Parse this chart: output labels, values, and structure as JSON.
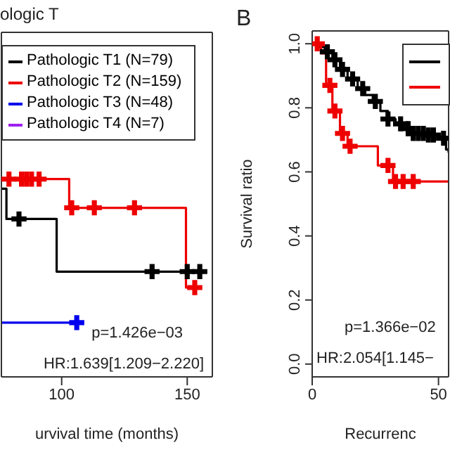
{
  "chart_data": [
    {
      "type": "step",
      "title": "ologic T",
      "xlabel": "urvival time (months)",
      "xlim": [
        76,
        160
      ],
      "xticks": [
        100,
        150
      ],
      "ylim": [
        -0.04,
        1.04
      ],
      "tick_labels": "x",
      "legend": "top",
      "annotations": [
        "p=1.426e−03",
        "HR:1.639[1.209−2.220]"
      ],
      "series": [
        {
          "name": "Pathologic T1 (N=79)",
          "color": "#000000",
          "x": [
            76,
            78,
            98,
            155
          ],
          "values": [
            0.55,
            0.455,
            0.29,
            0.29
          ]
        },
        {
          "name": "Pathologic T2 (N=159)",
          "color": "#ee0000",
          "x": [
            76,
            103,
            149.5,
            153
          ],
          "values": [
            0.58,
            0.49,
            0.24,
            0.24
          ]
        },
        {
          "name": "Pathologic T3 (N=48)",
          "color": "#0000ee",
          "x": [
            76,
            106
          ],
          "values": [
            0.13,
            0.13
          ]
        },
        {
          "name": "Pathologic T4 (N=7)",
          "color": "#a020f0"
        },
        {
          "type": "scatter",
          "marker": "cross",
          "color": "#000000",
          "x": [
            83,
            136,
            150,
            155
          ],
          "values": [
            0.455,
            0.29,
            0.29,
            0.29
          ]
        },
        {
          "type": "scatter",
          "marker": "cross",
          "color": "#ee0000",
          "x": [
            79,
            84,
            86,
            88,
            91,
            104,
            113,
            129,
            153
          ],
          "values": [
            0.58,
            0.58,
            0.58,
            0.58,
            0.58,
            0.49,
            0.49,
            0.49,
            0.24
          ]
        },
        {
          "type": "scatter",
          "marker": "cross",
          "color": "#0000ee",
          "x": [
            106
          ],
          "values": [
            0.13
          ]
        }
      ]
    },
    {
      "type": "step",
      "title": "B",
      "xlabel": "Recurrenc",
      "ylabel": "Survival ratio",
      "xlim": [
        0,
        54
      ],
      "xticks": [
        0,
        50
      ],
      "ylim": [
        -0.04,
        1.04
      ],
      "yticks": [
        {
          "value": 0,
          "label": "0.0"
        },
        0.2,
        0.4,
        0.6,
        0.8,
        {
          "value": 1,
          "label": "1.0"
        }
      ],
      "legend": "top right",
      "annotations": [
        "p=1.366e−02",
        "HR:2.054[1.145−"
      ],
      "series": [
        {
          "color": "#000000",
          "x": [
            0,
            2,
            5,
            8,
            11,
            14,
            18,
            21,
            24,
            27,
            30,
            33,
            36,
            39,
            45,
            50,
            53,
            54
          ],
          "values": [
            1,
            0.99,
            0.975,
            0.95,
            0.92,
            0.89,
            0.86,
            0.84,
            0.82,
            0.79,
            0.765,
            0.75,
            0.735,
            0.72,
            0.715,
            0.705,
            0.67,
            0.66
          ]
        },
        {
          "color": "#ee0000",
          "x": [
            0,
            3.5,
            5.5,
            8,
            11,
            14,
            26,
            32,
            54
          ],
          "values": [
            1,
            0.97,
            0.87,
            0.79,
            0.72,
            0.68,
            0.62,
            0.57,
            0.57
          ]
        },
        {
          "type": "scatter",
          "marker": "cross",
          "color": "#000000",
          "x": [
            6,
            9,
            12,
            16,
            20,
            25,
            30,
            35,
            38,
            40,
            42,
            44,
            46,
            48,
            52
          ],
          "values": [
            0.975,
            0.95,
            0.92,
            0.89,
            0.86,
            0.82,
            0.765,
            0.75,
            0.735,
            0.72,
            0.72,
            0.72,
            0.715,
            0.715,
            0.705
          ]
        },
        {
          "type": "scatter",
          "marker": "cross",
          "color": "#ee0000",
          "x": [
            2,
            7,
            9,
            12,
            15,
            30,
            33,
            36,
            40
          ],
          "values": [
            1,
            0.87,
            0.79,
            0.72,
            0.68,
            0.62,
            0.57,
            0.57,
            0.57
          ]
        }
      ]
    }
  ]
}
